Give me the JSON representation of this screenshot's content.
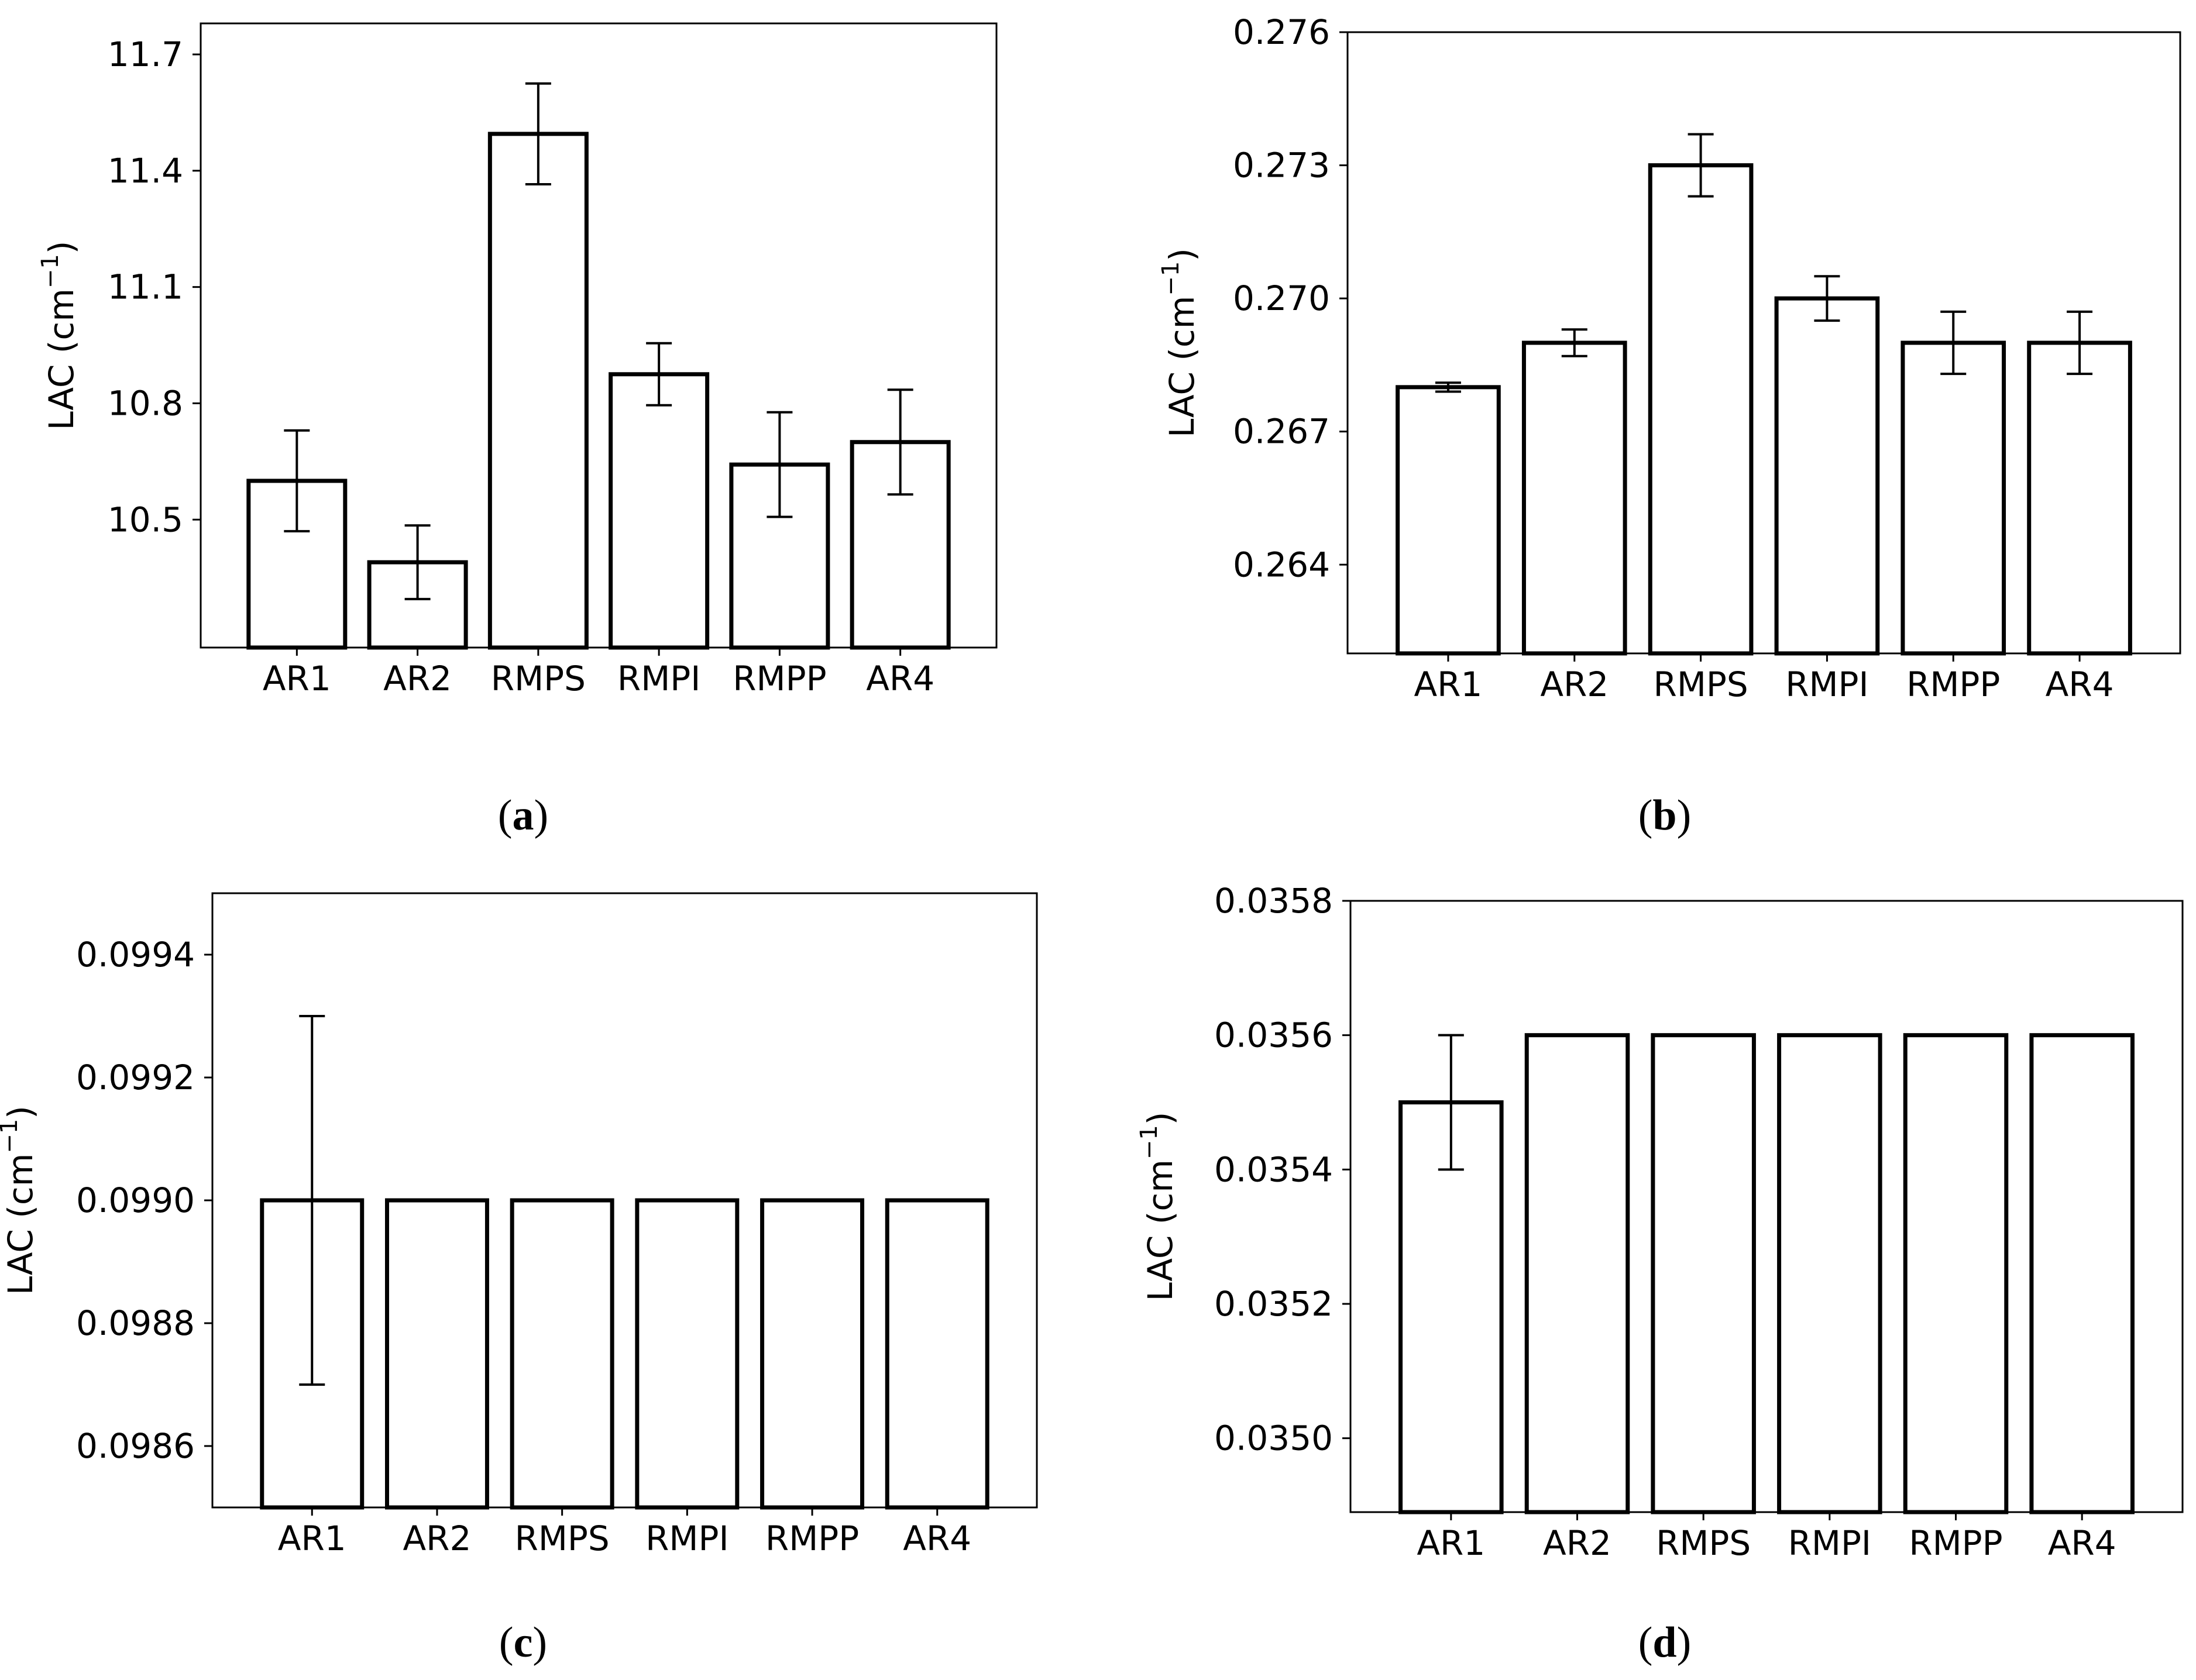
{
  "chart_data": [
    {
      "panel": "a",
      "type": "bar",
      "ylabel": "LAC (cm",
      "ylabel_sup": "−1",
      "ylabel_close": ")",
      "categories": [
        "AR1",
        "AR2",
        "RMPS",
        "RMPI",
        "RMPP",
        "AR4"
      ],
      "values": [
        10.6,
        10.39,
        11.495,
        10.875,
        10.642,
        10.7
      ],
      "errors": [
        0.13,
        0.095,
        0.13,
        0.08,
        0.135,
        0.135
      ],
      "ylim": [
        10.17,
        11.78
      ],
      "yticks": [
        10.5,
        10.8,
        11.1,
        11.4,
        11.7
      ],
      "ytick_labels": [
        "10.5",
        "10.8",
        "11.1",
        "11.4",
        "11.7"
      ]
    },
    {
      "panel": "b",
      "type": "bar",
      "ylabel": "LAC (cm",
      "ylabel_sup": "−1",
      "ylabel_close": ")",
      "categories": [
        "AR1",
        "AR2",
        "RMPS",
        "RMPI",
        "RMPP",
        "AR4"
      ],
      "values": [
        0.268,
        0.269,
        0.273,
        0.27,
        0.269,
        0.269
      ],
      "errors": [
        0.0001,
        0.0003,
        0.0007,
        0.0005,
        0.0007,
        0.0007
      ],
      "ylim": [
        0.262,
        0.276
      ],
      "yticks": [
        0.264,
        0.267,
        0.27,
        0.273,
        0.276
      ],
      "ytick_labels": [
        "0.264",
        "0.267",
        "0.270",
        "0.273",
        "0.276"
      ]
    },
    {
      "panel": "c",
      "type": "bar",
      "ylabel": "LAC (cm",
      "ylabel_sup": "−1",
      "ylabel_close": ")",
      "categories": [
        "AR1",
        "AR2",
        "RMPS",
        "RMPI",
        "RMPP",
        "AR4"
      ],
      "values": [
        0.099,
        0.099,
        0.099,
        0.099,
        0.099,
        0.099
      ],
      "errors": [
        0.0003,
        0,
        0,
        0,
        0,
        0
      ],
      "ylim": [
        0.0985,
        0.0995
      ],
      "yticks": [
        0.0986,
        0.0988,
        0.099,
        0.0992,
        0.0994
      ],
      "ytick_labels": [
        "0.0986",
        "0.0988",
        "0.0990",
        "0.0992",
        "0.0994"
      ]
    },
    {
      "panel": "d",
      "type": "bar",
      "ylabel": "LAC (cm",
      "ylabel_sup": "−1",
      "ylabel_close": ")",
      "categories": [
        "AR1",
        "AR2",
        "RMPS",
        "RMPI",
        "RMPP",
        "AR4"
      ],
      "values": [
        0.0355,
        0.0356,
        0.0356,
        0.0356,
        0.0356,
        0.0356
      ],
      "errors": [
        0.0001,
        0,
        0,
        0,
        0,
        0
      ],
      "ylim": [
        0.03489,
        0.0358
      ],
      "yticks": [
        0.035,
        0.0352,
        0.0354,
        0.0356,
        0.0358
      ],
      "ytick_labels": [
        "0.0350",
        "0.0352",
        "0.0354",
        "0.0356",
        "0.0358"
      ]
    }
  ],
  "panel_labels": [
    {
      "open": "(",
      "letter": "a",
      "close": ")"
    },
    {
      "open": "(",
      "letter": "b",
      "close": ")"
    },
    {
      "open": "(",
      "letter": "c",
      "close": ")"
    },
    {
      "open": "(",
      "letter": "d",
      "close": ")"
    }
  ]
}
